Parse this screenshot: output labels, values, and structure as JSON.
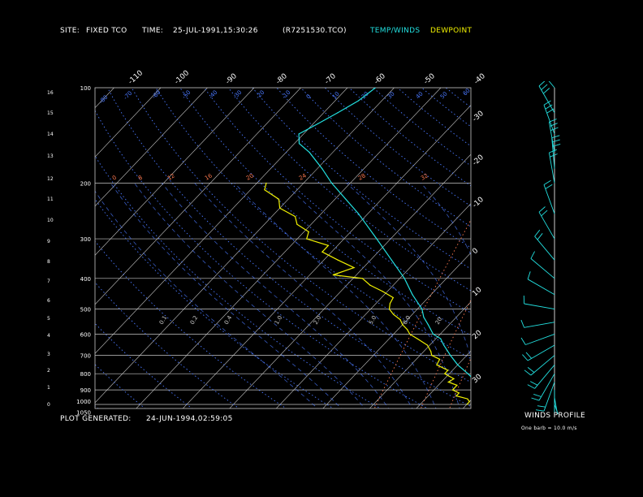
{
  "header": {
    "site_label": "SITE:",
    "site_value": "FIXED TCO",
    "time_label": "TIME:",
    "time_value": "25-JUL-1991,15:30:26",
    "file_id": "(R7251530.TCO)",
    "legend_temp": "TEMP/WINDS",
    "legend_dew": "DEWPOINT"
  },
  "footer": {
    "generated_label": "PLOT GENERATED:",
    "generated_value": "24-JUN-1994,02:59:05"
  },
  "winds_panel": {
    "title": "WINDS PROFILE",
    "note": "One barb = 10.0 m/s"
  },
  "colors": {
    "temperature": "#22e0e0",
    "dewpoint": "#f0f000",
    "isobar": "#c8c8c8",
    "isotherm": "#c8c8c8",
    "dry_adiabat": "#4a78ff",
    "moist_adiabat": "#4a78ff",
    "mixing_ratio": "#ff7a50",
    "height_tick": "#c8c8c8"
  },
  "chart_data": {
    "type": "line",
    "pressure_range_hpa": [
      1050,
      100
    ],
    "pressure_scale": "log",
    "temperature_range_c": [
      -40,
      40
    ],
    "skew_note": "isotherms skewed",
    "pressure_labels": [
      "100",
      "200",
      "300",
      "400",
      "500",
      "600",
      "700",
      "800",
      "900",
      "1000",
      "1050"
    ],
    "height_km_labels": [
      "0",
      "1",
      "2",
      "3",
      "4",
      "5",
      "6",
      "7",
      "8",
      "9",
      "10",
      "11",
      "12",
      "13",
      "14",
      "15",
      "16"
    ],
    "isotherm_labels_top": [
      "-110",
      "-100",
      "-90",
      "-80",
      "-70",
      "-60",
      "-50",
      "-40"
    ],
    "isotherm_labels_right": [
      "-30",
      "-20",
      "-10",
      "0",
      "10",
      "20",
      "30"
    ],
    "dry_adiabat_labels": [
      "-80",
      "-70",
      "-60",
      "-50",
      "-40",
      "-30",
      "-20",
      "-10",
      "0",
      "10",
      "20",
      "30",
      "40",
      "50",
      "60"
    ],
    "moist_adiabat_labels": [
      "0.1",
      "0.2",
      "0.4",
      "1.0",
      "2.0",
      "5.0",
      "8.0",
      "20"
    ],
    "mixing_ratio_labels": [
      "0",
      "8",
      "12",
      "16",
      "20",
      "24",
      "28",
      "32"
    ],
    "series": [
      {
        "name": "TEMP/WINDS",
        "points": [
          {
            "p": 1000,
            "t": 33
          },
          {
            "p": 980,
            "t": 29
          },
          {
            "p": 950,
            "t": 26
          },
          {
            "p": 930,
            "t": 23
          },
          {
            "p": 900,
            "t": 21
          },
          {
            "p": 870,
            "t": 19
          },
          {
            "p": 850,
            "t": 17.5
          },
          {
            "p": 800,
            "t": 14
          },
          {
            "p": 750,
            "t": 10
          },
          {
            "p": 700,
            "t": 6.5
          },
          {
            "p": 650,
            "t": 3
          },
          {
            "p": 620,
            "t": 1
          },
          {
            "p": 600,
            "t": -1.5
          },
          {
            "p": 560,
            "t": -4.5
          },
          {
            "p": 530,
            "t": -7
          },
          {
            "p": 500,
            "t": -9
          },
          {
            "p": 450,
            "t": -14
          },
          {
            "p": 400,
            "t": -19
          },
          {
            "p": 350,
            "t": -25.5
          },
          {
            "p": 300,
            "t": -33
          },
          {
            "p": 250,
            "t": -42
          },
          {
            "p": 200,
            "t": -54
          },
          {
            "p": 180,
            "t": -59
          },
          {
            "p": 160,
            "t": -65
          },
          {
            "p": 150,
            "t": -69
          },
          {
            "p": 140,
            "t": -71
          },
          {
            "p": 130,
            "t": -69
          },
          {
            "p": 120,
            "t": -67
          },
          {
            "p": 110,
            "t": -65
          },
          {
            "p": 100,
            "t": -64
          }
        ]
      },
      {
        "name": "DEWPOINT",
        "points": [
          {
            "p": 1000,
            "t": 20
          },
          {
            "p": 980,
            "t": 20
          },
          {
            "p": 960,
            "t": 19
          },
          {
            "p": 940,
            "t": 16
          },
          {
            "p": 920,
            "t": 16
          },
          {
            "p": 900,
            "t": 14
          },
          {
            "p": 870,
            "t": 14
          },
          {
            "p": 850,
            "t": 11.5
          },
          {
            "p": 830,
            "t": 12
          },
          {
            "p": 800,
            "t": 9
          },
          {
            "p": 780,
            "t": 9
          },
          {
            "p": 750,
            "t": 5.5
          },
          {
            "p": 720,
            "t": 5
          },
          {
            "p": 700,
            "t": 2.5
          },
          {
            "p": 680,
            "t": 1.5
          },
          {
            "p": 650,
            "t": -0.5
          },
          {
            "p": 620,
            "t": -4
          },
          {
            "p": 600,
            "t": -6.5
          },
          {
            "p": 580,
            "t": -8
          },
          {
            "p": 560,
            "t": -10
          },
          {
            "p": 540,
            "t": -11.5
          },
          {
            "p": 520,
            "t": -14
          },
          {
            "p": 500,
            "t": -16
          },
          {
            "p": 480,
            "t": -17
          },
          {
            "p": 460,
            "t": -17.5
          },
          {
            "p": 440,
            "t": -21
          },
          {
            "p": 420,
            "t": -25
          },
          {
            "p": 400,
            "t": -28
          },
          {
            "p": 390,
            "t": -35
          },
          {
            "p": 370,
            "t": -32
          },
          {
            "p": 350,
            "t": -37
          },
          {
            "p": 330,
            "t": -42
          },
          {
            "p": 315,
            "t": -42
          },
          {
            "p": 300,
            "t": -48
          },
          {
            "p": 285,
            "t": -49
          },
          {
            "p": 270,
            "t": -53
          },
          {
            "p": 255,
            "t": -55
          },
          {
            "p": 240,
            "t": -60
          },
          {
            "p": 225,
            "t": -62
          },
          {
            "p": 210,
            "t": -67
          },
          {
            "p": 200,
            "t": -68
          }
        ]
      }
    ],
    "winds_profile": [
      {
        "p": 1000,
        "dir": 160,
        "speed": 5
      },
      {
        "p": 950,
        "dir": 170,
        "speed": 10
      },
      {
        "p": 900,
        "dir": 180,
        "speed": 15
      },
      {
        "p": 850,
        "dir": 200,
        "speed": 15
      },
      {
        "p": 800,
        "dir": 210,
        "speed": 18
      },
      {
        "p": 750,
        "dir": 220,
        "speed": 20
      },
      {
        "p": 700,
        "dir": 230,
        "speed": 20
      },
      {
        "p": 650,
        "dir": 240,
        "speed": 22
      },
      {
        "p": 600,
        "dir": 250,
        "speed": 12
      },
      {
        "p": 550,
        "dir": 260,
        "speed": 8
      },
      {
        "p": 500,
        "dir": 280,
        "speed": 5
      },
      {
        "p": 450,
        "dir": 300,
        "speed": 8
      },
      {
        "p": 400,
        "dir": 310,
        "speed": 12
      },
      {
        "p": 350,
        "dir": 320,
        "speed": 15
      },
      {
        "p": 300,
        "dir": 330,
        "speed": 18
      },
      {
        "p": 250,
        "dir": 340,
        "speed": 18
      },
      {
        "p": 200,
        "dir": 350,
        "speed": 22
      },
      {
        "p": 180,
        "dir": 355,
        "speed": 28
      },
      {
        "p": 160,
        "dir": 350,
        "speed": 30
      },
      {
        "p": 140,
        "dir": 340,
        "speed": 32
      },
      {
        "p": 120,
        "dir": 330,
        "speed": 25
      },
      {
        "p": 100,
        "dir": 320,
        "speed": 20
      }
    ]
  }
}
